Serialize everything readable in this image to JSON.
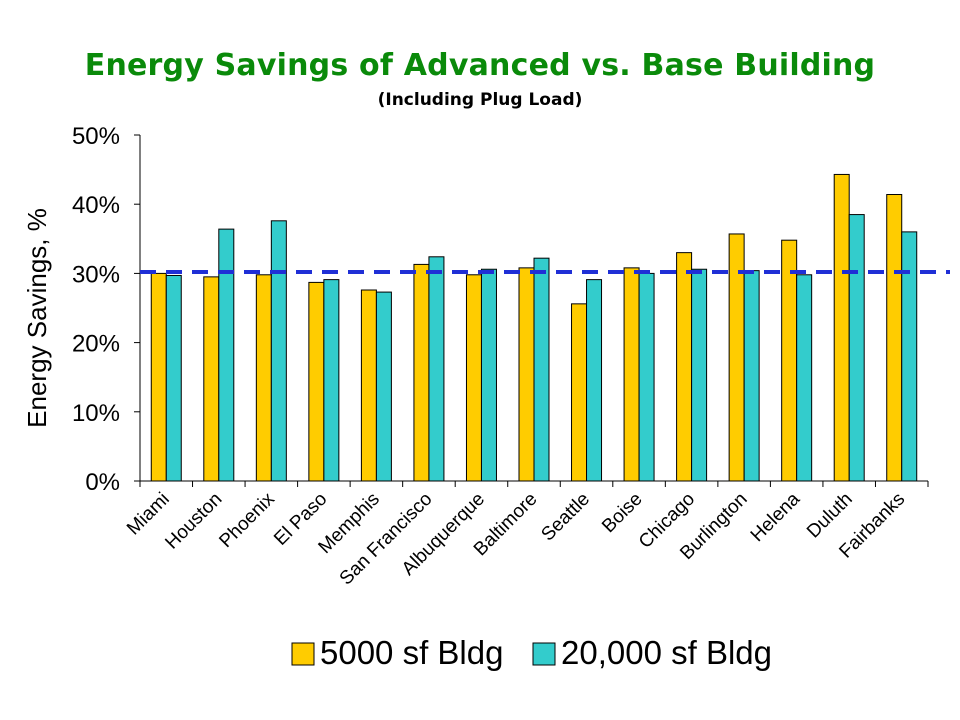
{
  "chart_data": {
    "type": "bar",
    "title": "Energy Savings of Advanced vs. Base Building",
    "subtitle": "(Including Plug Load)",
    "ylabel": "Energy Savings, %",
    "xlabel": "",
    "ylim": [
      0,
      50
    ],
    "yticks": [
      "0%",
      "10%",
      "20%",
      "30%",
      "40%",
      "50%"
    ],
    "categories": [
      "Miami",
      "Houston",
      "Phoenix",
      "El Paso",
      "Memphis",
      "San Francisco",
      "Albuquerque",
      "Baltimore",
      "Seattle",
      "Boise",
      "Chicago",
      "Burlington",
      "Helena",
      "Duluth",
      "Fairbanks"
    ],
    "series": [
      {
        "name": "5000 sf Bldg",
        "color": "#ffcc00",
        "values": [
          30,
          29.5,
          29.8,
          28.7,
          27.6,
          31.3,
          29.8,
          30.8,
          25.6,
          30.8,
          33,
          35.7,
          34.8,
          44.3,
          41.4
        ]
      },
      {
        "name": "20,000 sf Bldg",
        "color": "#33cccc",
        "values": [
          29.7,
          36.4,
          37.6,
          29.1,
          27.3,
          32.4,
          30.6,
          32.2,
          29.1,
          30,
          30.6,
          30.4,
          29.8,
          38.5,
          36
        ]
      }
    ],
    "reference_line": {
      "value": 30.2,
      "color": "#1f2fd6",
      "style": "dashed"
    },
    "grid": false,
    "legend_position": "bottom"
  }
}
